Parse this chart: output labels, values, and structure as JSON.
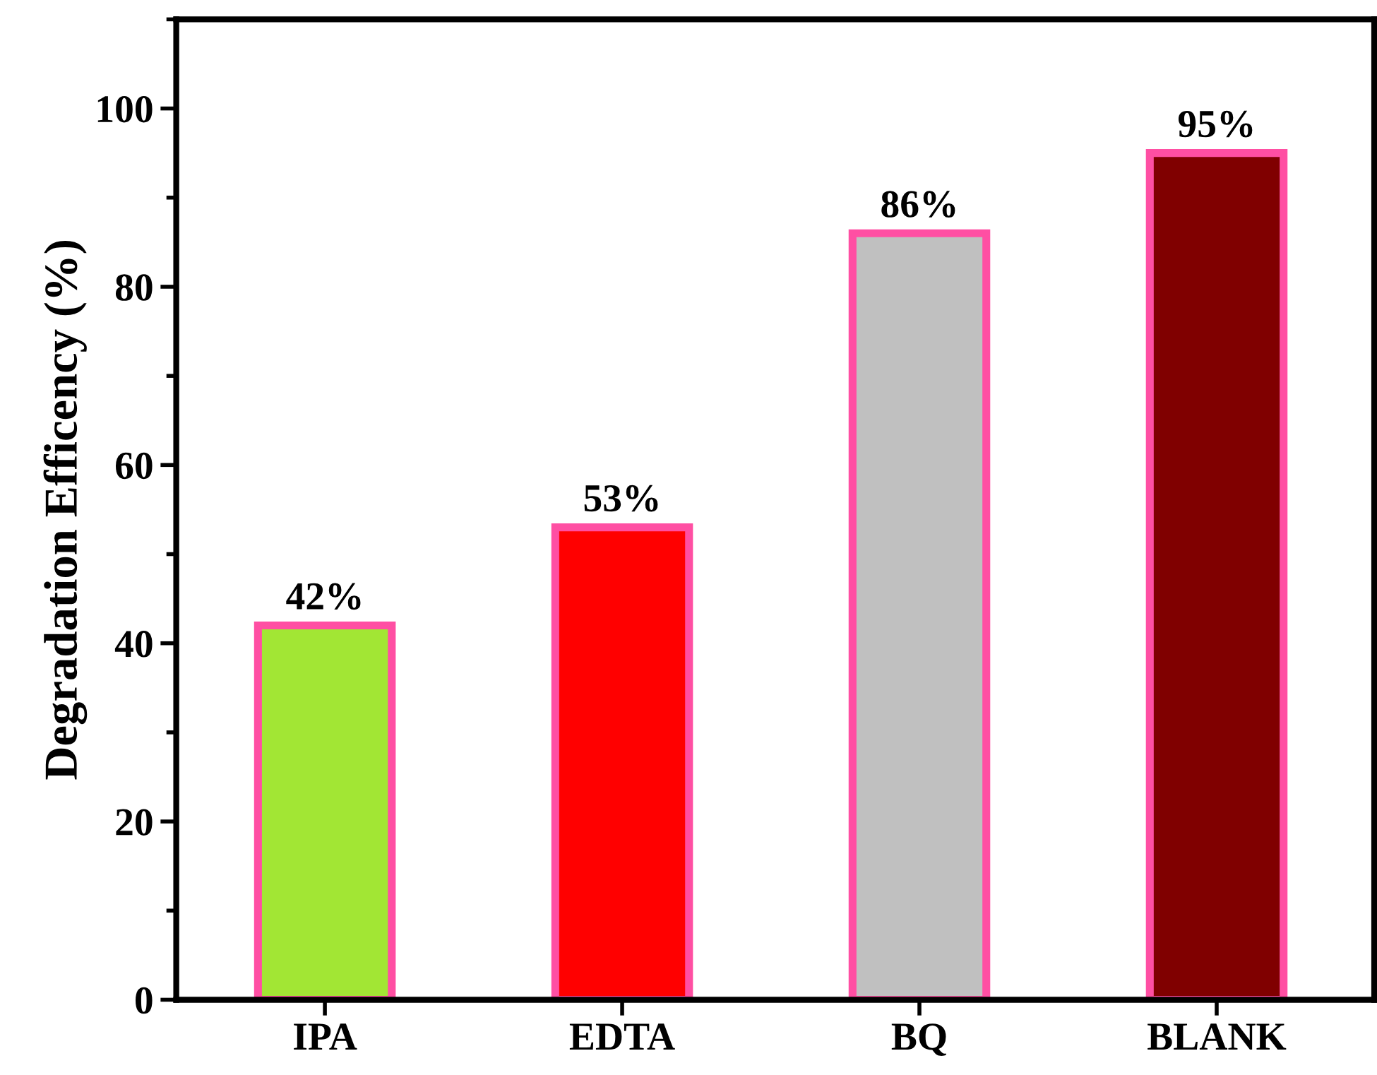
{
  "chart_data": {
    "type": "bar",
    "ylabel": "Degradation Efficency (%)",
    "categories": [
      "IPA",
      "EDTA",
      "BQ",
      "BLANK"
    ],
    "values": [
      42,
      53,
      86,
      95
    ],
    "colors": [
      "#a2e634",
      "#ff0000",
      "#c0c0c0",
      "#800000"
    ],
    "value_labels": [
      "42%",
      "53%",
      "86%",
      "95%"
    ],
    "ylim": [
      0,
      110
    ],
    "yticks": [
      0,
      20,
      40,
      60,
      80,
      100
    ],
    "grid": false,
    "legend": false
  }
}
